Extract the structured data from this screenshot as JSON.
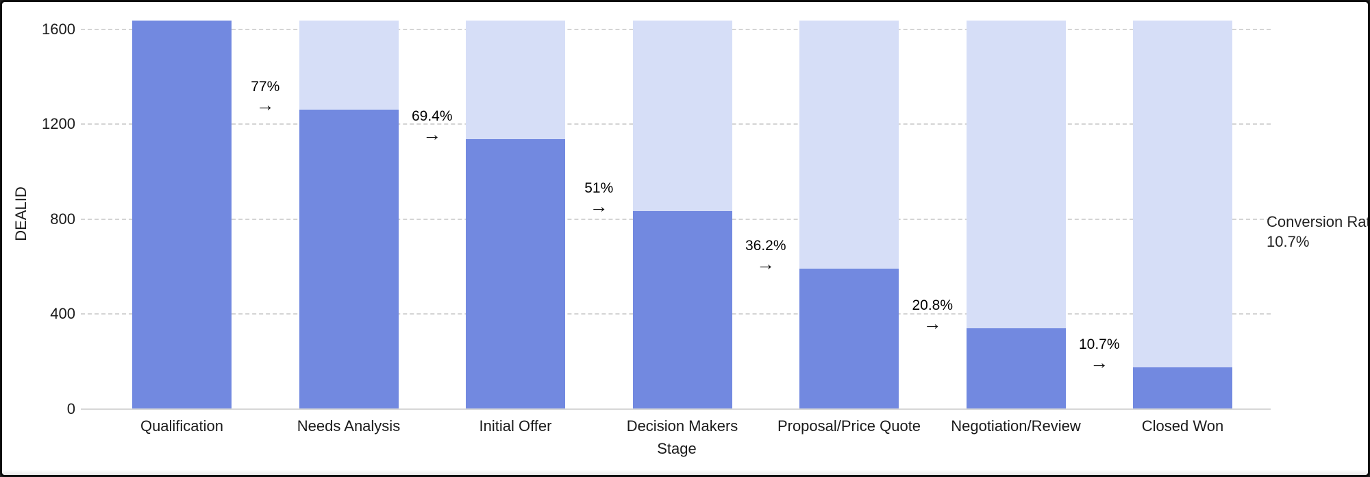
{
  "window": {
    "background_color": "#ffffff",
    "border_color": "#0b0b0b"
  },
  "chart_data": {
    "type": "bar",
    "subtype": "funnel",
    "title": "",
    "xlabel": "Stage",
    "ylabel": "DEALID",
    "categories": [
      "Qualification",
      "Needs Analysis",
      "Initial Offer",
      "Decision Makers",
      "Proposal/Price Quote",
      "Negotiation/Review",
      "Closed Won"
    ],
    "series": [
      {
        "name": "deals-remaining-in-stage",
        "color": "#7289E0",
        "values": [
          1637,
          1260,
          1136,
          835,
          592,
          340,
          175
        ]
      },
      {
        "name": "initial-total-background",
        "color": "#D6DEF7",
        "values": [
          1637,
          1637,
          1637,
          1637,
          1637,
          1637,
          1637
        ]
      }
    ],
    "transition_labels": [
      "77%",
      "69.4%",
      "51%",
      "36.2%",
      "20.8%",
      "10.7%"
    ],
    "yticks": [
      "0",
      "400",
      "800",
      "1200",
      "1600"
    ],
    "ytick_values": [
      0,
      400,
      800,
      1200,
      1600
    ],
    "ylim": [
      0,
      1650
    ],
    "grid": "dashed-horizontal",
    "legend": "none",
    "annotation": {
      "line1": "Conversion Rate:",
      "line2": "10.7%"
    }
  },
  "icons": {
    "arrow_right": "→"
  },
  "colors": {
    "bar_fill": "#7289E0",
    "bar_background_fill": "#D6DEF7",
    "gridline": "#cdcdcd",
    "axis_line": "#d7d7d7",
    "text": "#1a1a1a"
  }
}
